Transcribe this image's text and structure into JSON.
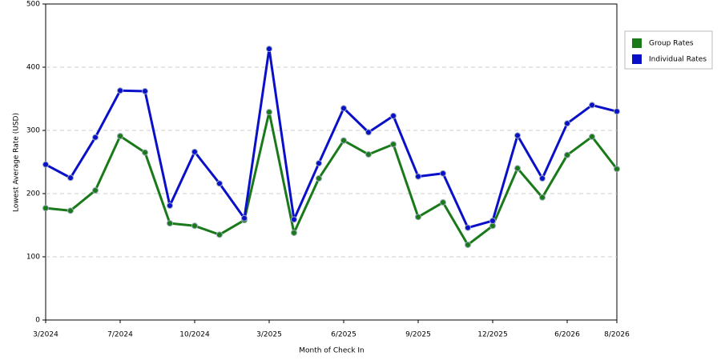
{
  "chart_data": {
    "type": "line",
    "x_label": "Month of Check In",
    "y_label": "Lowest Average Rate (USD)",
    "categories": [
      "3/2024",
      null,
      null,
      "7/2024",
      null,
      null,
      "10/2024",
      null,
      null,
      "3/2025",
      null,
      null,
      "6/2025",
      null,
      null,
      "9/2025",
      null,
      null,
      "12/2025",
      null,
      null,
      "6/2026",
      null,
      "8/2026"
    ],
    "series": [
      {
        "name": "Group Rates",
        "color": "#1a7a1a",
        "values": [
          177,
          173,
          205,
          291,
          265,
          153,
          149,
          135,
          158,
          329,
          138,
          224,
          284,
          262,
          278,
          163,
          186,
          119,
          149,
          240,
          194,
          261,
          290,
          239
        ]
      },
      {
        "name": "Individual Rates",
        "color": "#0a10c8",
        "values": [
          246,
          225,
          289,
          363,
          362,
          181,
          266,
          216,
          161,
          429,
          159,
          248,
          335,
          297,
          323,
          227,
          232,
          146,
          157,
          292,
          224,
          311,
          340,
          330
        ]
      }
    ],
    "ylim": [
      0,
      500
    ],
    "yticks": [
      0,
      100,
      200,
      300,
      400,
      500
    ],
    "grid": true,
    "legend": "right"
  }
}
